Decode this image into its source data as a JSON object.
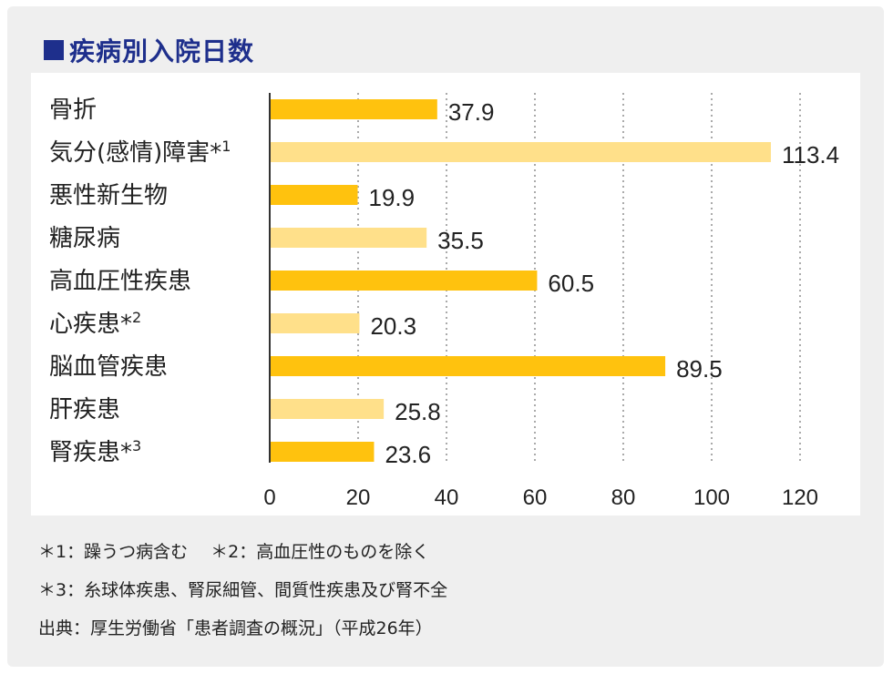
{
  "title": "疾病別入院日数",
  "chart_data": {
    "type": "bar",
    "orientation": "horizontal",
    "categories": [
      {
        "label": "骨折",
        "sup": ""
      },
      {
        "label": "気分(感情)障害*",
        "sup": "1"
      },
      {
        "label": "悪性新生物",
        "sup": ""
      },
      {
        "label": "糖尿病",
        "sup": ""
      },
      {
        "label": "高血圧性疾患",
        "sup": ""
      },
      {
        "label": "心疾患*",
        "sup": "2"
      },
      {
        "label": "脳血管疾患",
        "sup": ""
      },
      {
        "label": "肝疾患",
        "sup": ""
      },
      {
        "label": "腎疾患*",
        "sup": "3"
      }
    ],
    "values": [
      37.9,
      113.4,
      19.9,
      35.5,
      60.5,
      20.3,
      89.5,
      25.8,
      23.6
    ],
    "value_labels": [
      "37.9",
      "113.4",
      "19.9",
      "35.5",
      "60.5",
      "20.3",
      "89.5",
      "25.8",
      "23.6"
    ],
    "xlim": [
      0,
      120
    ],
    "xticks": [
      "0",
      "20",
      "40",
      "60",
      "80",
      "100",
      "120"
    ],
    "grid": "vertical dotted",
    "colors": {
      "primary": "#ffc20e",
      "secondary": "#ffe08a",
      "axis": "#333333",
      "grid": "#aaaaaa"
    }
  },
  "notes": [
    "＊1：躁うつ病含む　 ＊2：高血圧性のものを除く",
    "＊3：糸球体疾患、腎尿細管、間質性疾患及び腎不全",
    "出典：厚生労働省「患者調査の概況」（平成26年）"
  ],
  "colors": {
    "title": "#1e2f8c",
    "panel": "#efefef"
  }
}
